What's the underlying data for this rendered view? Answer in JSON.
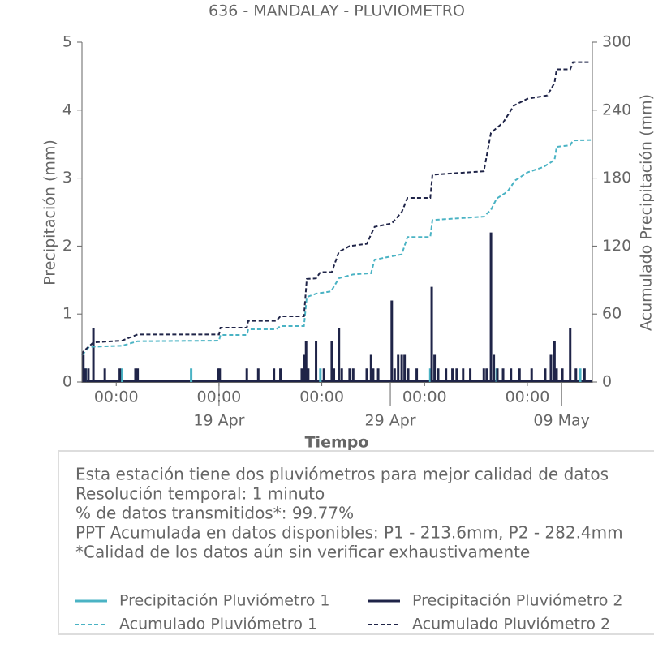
{
  "chart_data": {
    "type": "line",
    "title": "636 - MANDALAY - PLUVIOMETRO",
    "xlabel": "Tiempo",
    "ylabel": "Precipitación (mm)",
    "y2label": "Acumulado Precipitación (mm)",
    "xlim": [
      "Apr 11 00:00",
      "May 10 19:00"
    ],
    "xticks": [
      {
        "value": "Apr 13 00:00",
        "label": "00:00"
      },
      {
        "value": "Apr 19 00:00",
        "label": "00:00"
      },
      {
        "value": "Apr 25 00:00",
        "label": "00:00"
      },
      {
        "value": "May 1 00:00",
        "label": "00:00"
      },
      {
        "value": "May 7 00:00",
        "label": "00:00"
      }
    ],
    "xticks_major": [
      {
        "value": "Apr 19 00:00",
        "label": "19 Apr"
      },
      {
        "value": "Apr 29 00:00",
        "label": "29 Apr"
      },
      {
        "value": "May 9 00:00",
        "label": "09 May"
      }
    ],
    "ylim": [
      0,
      5
    ],
    "yticks": [
      0,
      1,
      2,
      3,
      4,
      5
    ],
    "y2lim": [
      0,
      300
    ],
    "y2ticks": [
      0,
      60,
      120,
      180,
      240,
      300
    ],
    "annotations": [
      "Esta estación tiene dos pluviómetros para mejor calidad de datos",
      "Resolución temporal: 1 minuto",
      "% de datos transmitidos*: 99.77%",
      "PPT Acumulada en datos disponibles: P1 - 213.6mm, P2 - 282.4mm",
      "*Calidad de los datos aún sin verificar exhaustivamente"
    ],
    "series": [
      {
        "name": "Precipitación Pluviómetro 1",
        "color": "#4ab3c4",
        "style": "solid",
        "axis": "y",
        "x": [
          "Apr 11 05:00",
          "Apr 13 08:00",
          "Apr 17 09:00",
          "Apr 24 22:00",
          "May 1 08:00",
          "May 5 05:00",
          "May 10 02:00"
        ],
        "values": [
          0.2,
          0.2,
          0.2,
          0.2,
          0.2,
          0.2,
          0.2
        ]
      },
      {
        "name": "Precipitación Pluviómetro 2",
        "color": "#1f2448",
        "style": "solid",
        "axis": "y",
        "x": [
          "Apr 11 02:00",
          "Apr 11 05:00",
          "Apr 11 09:00",
          "Apr 11 16:00",
          "Apr 12 08:00",
          "Apr 13 05:00",
          "Apr 14 03:00",
          "Apr 14 06:00",
          "Apr 18 23:00",
          "Apr 19 01:00",
          "Apr 20 15:00",
          "Apr 21 07:00",
          "Apr 22 05:00",
          "Apr 22 14:00",
          "Apr 23 20:00",
          "Apr 23 23:00",
          "Apr 24 02:00",
          "Apr 24 05:00",
          "Apr 24 16:00",
          "Apr 25 03:00",
          "Apr 25 14:00",
          "Apr 25 17:00",
          "Apr 26 00:00",
          "Apr 26 04:00",
          "Apr 26 15:00",
          "Apr 26 20:00",
          "Apr 27 15:00",
          "Apr 27 21:00",
          "Apr 28 00:00",
          "Apr 28 07:00",
          "Apr 29 02:00",
          "Apr 29 06:00",
          "Apr 29 11:00",
          "Apr 29 16:00",
          "Apr 29 20:00",
          "Apr 30 01:00",
          "Apr 30 13:00",
          "May 1 10:00",
          "May 1 14:00",
          "May 1 19:00",
          "May 2 06:00",
          "May 2 15:00",
          "May 2 21:00",
          "May 3 06:00",
          "May 3 16:00",
          "May 4 11:00",
          "May 4 15:00",
          "May 4 21:00",
          "May 5 01:00",
          "May 5 06:00",
          "May 5 14:00",
          "May 6 01:00",
          "May 6 13:00",
          "May 7 06:00",
          "May 8 01:00",
          "May 8 09:00",
          "May 8 14:00",
          "May 8 17:00",
          "May 9 01:00",
          "May 9 12:00",
          "May 9 20:00",
          "May 10 08:00"
        ],
        "values": [
          0.4,
          0.2,
          0.2,
          0.8,
          0.2,
          0.2,
          0.2,
          0.2,
          0.2,
          0.2,
          0.2,
          0.2,
          0.2,
          0.2,
          0.2,
          0.4,
          0.6,
          0.2,
          0.6,
          0.2,
          0.6,
          0.2,
          0.8,
          0.2,
          0.2,
          0.2,
          0.2,
          0.4,
          0.2,
          0.2,
          1.2,
          0.2,
          0.4,
          0.4,
          0.4,
          0.2,
          0.2,
          1.4,
          0.4,
          0.2,
          0.2,
          0.2,
          0.2,
          0.2,
          0.2,
          0.2,
          0.2,
          2.2,
          0.4,
          0.2,
          0.2,
          0.2,
          0.2,
          0.2,
          0.2,
          0.4,
          0.6,
          0.2,
          0.2,
          0.8,
          0.2,
          0.2
        ]
      },
      {
        "name": "Acumulado Pluviómetro 1",
        "color": "#4ab3c4",
        "style": "dashed",
        "axis": "y2",
        "x": [
          "Apr 11 00:00",
          "Apr 11 02:00",
          "Apr 11 10:00",
          "Apr 13 08:00",
          "Apr 14 06:00",
          "Apr 19 00:00",
          "Apr 19 02:00",
          "Apr 20 15:00",
          "Apr 20 17:00",
          "Apr 22 08:00",
          "Apr 22 14:00",
          "Apr 23 23:00",
          "Apr 24 03:00",
          "Apr 24 16:00",
          "Apr 25 13:00",
          "Apr 26 00:00",
          "Apr 26 20:00",
          "Apr 27 21:00",
          "Apr 28 02:00",
          "Apr 29 02:00",
          "Apr 29 16:00",
          "Apr 30 00:00",
          "May 1 08:00",
          "May 1 11:00",
          "May 4 11:00",
          "May 4 21:00",
          "May 5 05:00",
          "May 5 20:00",
          "May 6 07:00",
          "May 7 00:00",
          "May 7 23:00",
          "May 8 14:00",
          "May 8 17:00",
          "May 9 12:00",
          "May 9 16:00",
          "May 10 17:00"
        ],
        "values": [
          24,
          25,
          31,
          32,
          36,
          36.5,
          41.5,
          41.5,
          46.5,
          46.5,
          49.4,
          49.4,
          75,
          78,
          80,
          91.6,
          95,
          96,
          108,
          111,
          112.7,
          128,
          128,
          143,
          146,
          152,
          162,
          168,
          178,
          185,
          190,
          196,
          207.6,
          209,
          213.3,
          213.6
        ]
      },
      {
        "name": "Acumulado Pluviómetro 2",
        "color": "#1f2448",
        "style": "dashed",
        "axis": "y2",
        "x": [
          "Apr 11 00:00",
          "Apr 11 02:00",
          "Apr 11 16:00",
          "Apr 13 08:00",
          "Apr 14 06:00",
          "Apr 19 00:00",
          "Apr 19 02:00",
          "Apr 20 15:00",
          "Apr 20 17:00",
          "Apr 22 08:00",
          "Apr 22 14:00",
          "Apr 23 23:00",
          "Apr 24 03:00",
          "Apr 24 16:00",
          "Apr 24 22:00",
          "Apr 25 14:00",
          "Apr 26 00:00",
          "Apr 26 15:00",
          "Apr 27 15:00",
          "Apr 28 02:00",
          "Apr 29 02:00",
          "Apr 29 16:00",
          "Apr 30 00:00",
          "May 1 08:00",
          "May 1 11:00",
          "May 4 11:00",
          "May 4 21:00",
          "May 5 14:00",
          "May 6 05:00",
          "May 7 00:00",
          "May 8 04:00",
          "May 8 14:00",
          "May 8 17:00",
          "May 9 12:00",
          "May 9 16:00",
          "May 10 17:00"
        ],
        "values": [
          24,
          27,
          35,
          36.5,
          42,
          42,
          48,
          48,
          54,
          54,
          58,
          58,
          91,
          91.5,
          97,
          97,
          115,
          120,
          122,
          137,
          140,
          150,
          162.5,
          162.5,
          183,
          186,
          220,
          229,
          244,
          250,
          253,
          264,
          276,
          276,
          282.4,
          282.4
        ]
      }
    ]
  }
}
